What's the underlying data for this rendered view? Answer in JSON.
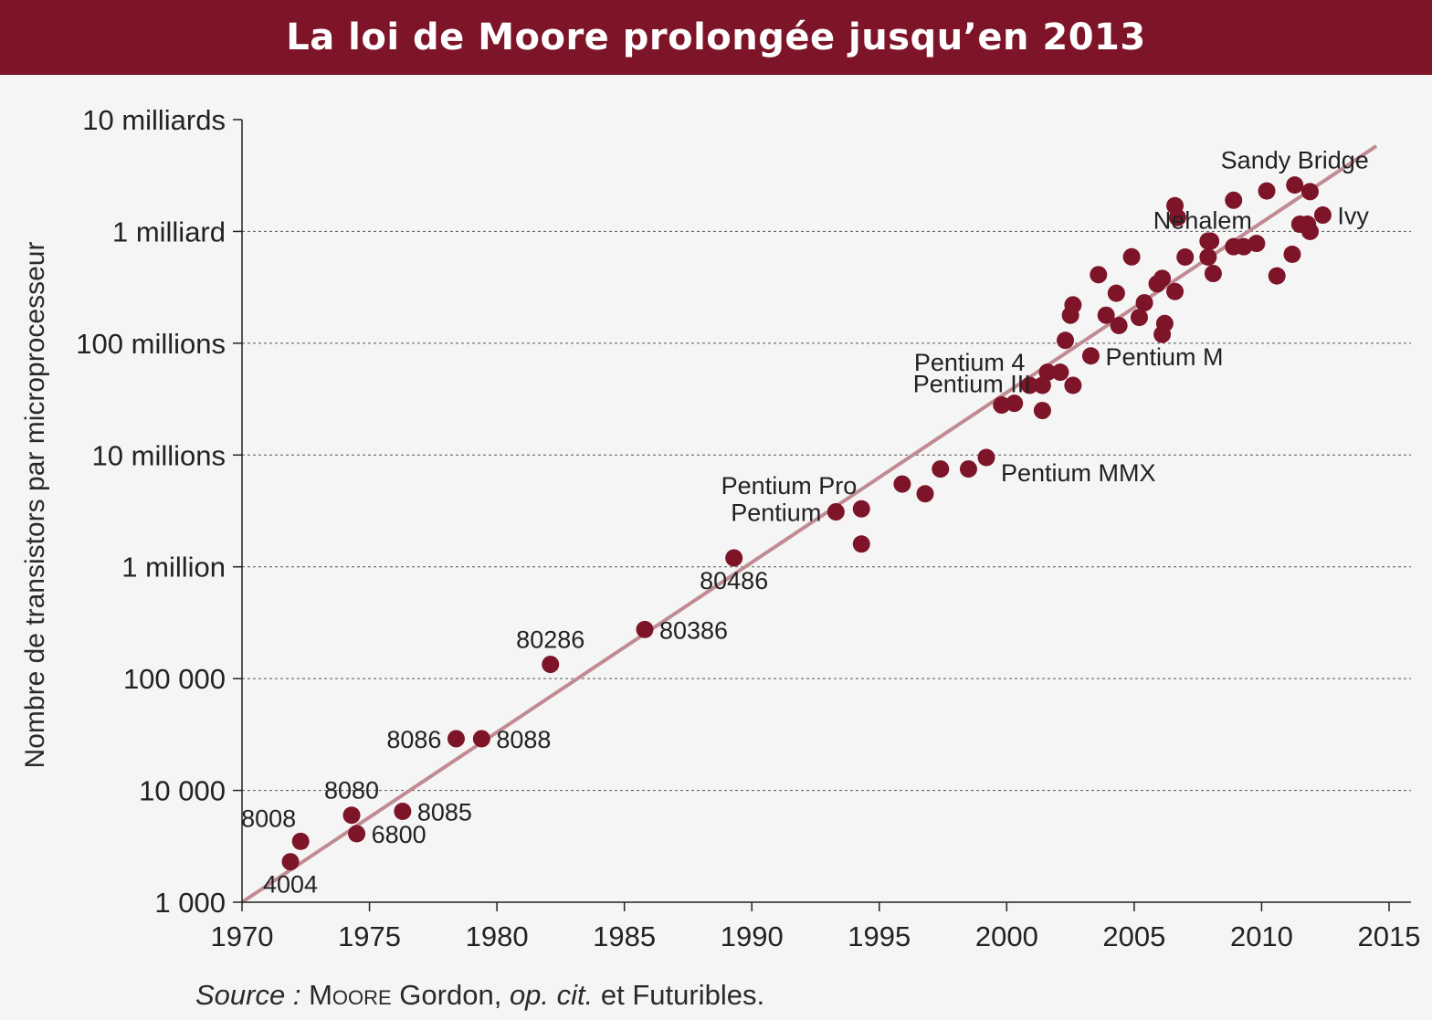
{
  "header": {
    "title": "La loi de Moore prolongée jusqu’en 2013"
  },
  "colors": {
    "banner": "#7d1428",
    "point": "#7d1428",
    "trend": "#c08b93",
    "axis": "#222222",
    "grid": "#555555",
    "background": "#f5f5f5"
  },
  "source": {
    "label": "Source :",
    "author_sc": "Moore",
    "author_rest": " Gordon, ",
    "cit": "op. cit.",
    "rest": " et Futuribles."
  },
  "chart_data": {
    "type": "scatter",
    "title": "",
    "xlabel": "",
    "ylabel": "Nombre de transistors par microprocesseur",
    "xlim": [
      1970,
      2015
    ],
    "ylim": [
      1000,
      10000000000
    ],
    "yscale": "log",
    "grid": "horizontal dashed",
    "x_ticks": [
      1970,
      1975,
      1980,
      1985,
      1990,
      1995,
      2000,
      2005,
      2010,
      2015
    ],
    "y_ticks": [
      {
        "value": 1000,
        "label": "1 000"
      },
      {
        "value": 10000,
        "label": "10 000"
      },
      {
        "value": 100000,
        "label": "100 000"
      },
      {
        "value": 1000000,
        "label": "1 million"
      },
      {
        "value": 10000000,
        "label": "10 millions"
      },
      {
        "value": 100000000,
        "label": "100 millions"
      },
      {
        "value": 1000000000,
        "label": "1 milliard"
      },
      {
        "value": 10000000000,
        "label": "10 milliards"
      }
    ],
    "trend_line": {
      "x": [
        1970,
        2014.5
      ],
      "y": [
        1000,
        5800000000
      ]
    },
    "points": [
      {
        "x": 1971.9,
        "y": 2300,
        "label": "4004",
        "anchor": "below"
      },
      {
        "x": 1972.3,
        "y": 3500,
        "label": "8008",
        "anchor": "above-left"
      },
      {
        "x": 1974.3,
        "y": 6000,
        "label": "8080",
        "anchor": "above"
      },
      {
        "x": 1974.5,
        "y": 4100,
        "label": "6800",
        "anchor": "right"
      },
      {
        "x": 1976.3,
        "y": 6500,
        "label": "8085",
        "anchor": "right"
      },
      {
        "x": 1978.4,
        "y": 29000,
        "label": "8086",
        "anchor": "left"
      },
      {
        "x": 1979.4,
        "y": 29000,
        "label": "8088",
        "anchor": "right"
      },
      {
        "x": 1982.1,
        "y": 134000,
        "label": "80286",
        "anchor": "above"
      },
      {
        "x": 1985.8,
        "y": 275000,
        "label": "80386",
        "anchor": "right"
      },
      {
        "x": 1989.3,
        "y": 1200000,
        "label": "80486",
        "anchor": "below"
      },
      {
        "x": 1993.3,
        "y": 3100000,
        "label": "Pentium",
        "anchor": "left"
      },
      {
        "x": 1994.3,
        "y": 3300000,
        "label": "Pentium Pro",
        "anchor": "above-left"
      },
      {
        "x": 1994.3,
        "y": 1600000,
        "label": "",
        "anchor": ""
      },
      {
        "x": 1995.9,
        "y": 5500000,
        "label": "",
        "anchor": ""
      },
      {
        "x": 1996.8,
        "y": 4500000,
        "label": "",
        "anchor": ""
      },
      {
        "x": 1997.4,
        "y": 7500000,
        "label": "",
        "anchor": ""
      },
      {
        "x": 1998.5,
        "y": 7500000,
        "label": "",
        "anchor": ""
      },
      {
        "x": 1999.2,
        "y": 9500000,
        "label": "Pentium MMX",
        "anchor": "below-right"
      },
      {
        "x": 1999.8,
        "y": 28000000,
        "label": "Pentium III",
        "anchor": "below-left"
      },
      {
        "x": 2000.3,
        "y": 29000000,
        "label": "",
        "anchor": ""
      },
      {
        "x": 2000.9,
        "y": 42000000,
        "label": "Pentium 4",
        "anchor": "above-left"
      },
      {
        "x": 2001.4,
        "y": 42000000,
        "label": "",
        "anchor": ""
      },
      {
        "x": 2001.4,
        "y": 25000000,
        "label": "",
        "anchor": ""
      },
      {
        "x": 2001.6,
        "y": 55000000,
        "label": "",
        "anchor": ""
      },
      {
        "x": 2002.1,
        "y": 55000000,
        "label": "",
        "anchor": ""
      },
      {
        "x": 2002.3,
        "y": 106000000,
        "label": "",
        "anchor": ""
      },
      {
        "x": 2002.5,
        "y": 178000000,
        "label": "",
        "anchor": ""
      },
      {
        "x": 2002.6,
        "y": 220000000,
        "label": "",
        "anchor": ""
      },
      {
        "x": 2002.6,
        "y": 42000000,
        "label": "",
        "anchor": ""
      },
      {
        "x": 2003.3,
        "y": 77000000,
        "label": "Pentium M",
        "anchor": "right"
      },
      {
        "x": 2003.6,
        "y": 410000000,
        "label": "",
        "anchor": ""
      },
      {
        "x": 2003.9,
        "y": 178000000,
        "label": "",
        "anchor": ""
      },
      {
        "x": 2004.3,
        "y": 280000000,
        "label": "",
        "anchor": ""
      },
      {
        "x": 2004.4,
        "y": 144000000,
        "label": "",
        "anchor": ""
      },
      {
        "x": 2004.9,
        "y": 592000000,
        "label": "",
        "anchor": ""
      },
      {
        "x": 2005.2,
        "y": 170000000,
        "label": "",
        "anchor": ""
      },
      {
        "x": 2005.4,
        "y": 230000000,
        "label": "",
        "anchor": ""
      },
      {
        "x": 2005.9,
        "y": 340000000,
        "label": "",
        "anchor": ""
      },
      {
        "x": 2006.1,
        "y": 380000000,
        "label": "",
        "anchor": ""
      },
      {
        "x": 2006.1,
        "y": 120000000,
        "label": "",
        "anchor": ""
      },
      {
        "x": 2006.2,
        "y": 150000000,
        "label": "",
        "anchor": ""
      },
      {
        "x": 2006.6,
        "y": 290000000,
        "label": "",
        "anchor": ""
      },
      {
        "x": 2006.6,
        "y": 1700000000,
        "label": "",
        "anchor": ""
      },
      {
        "x": 2006.7,
        "y": 1330000000,
        "label": "",
        "anchor": ""
      },
      {
        "x": 2007.0,
        "y": 590000000,
        "label": "",
        "anchor": ""
      },
      {
        "x": 2007.9,
        "y": 820000000,
        "label": "",
        "anchor": ""
      },
      {
        "x": 2007.9,
        "y": 590000000,
        "label": "",
        "anchor": ""
      },
      {
        "x": 2008.0,
        "y": 820000000,
        "label": "",
        "anchor": ""
      },
      {
        "x": 2008.1,
        "y": 420000000,
        "label": "",
        "anchor": ""
      },
      {
        "x": 2008.9,
        "y": 1900000000,
        "label": "",
        "anchor": ""
      },
      {
        "x": 2008.9,
        "y": 730000000,
        "label": "",
        "anchor": ""
      },
      {
        "x": 2009.3,
        "y": 730000000,
        "label": "",
        "anchor": ""
      },
      {
        "x": 2009.8,
        "y": 780000000,
        "label": "Nehalem",
        "anchor": "above-left"
      },
      {
        "x": 2010.2,
        "y": 2300000000,
        "label": "",
        "anchor": ""
      },
      {
        "x": 2010.6,
        "y": 400000000,
        "label": "",
        "anchor": ""
      },
      {
        "x": 2011.2,
        "y": 624000000,
        "label": "",
        "anchor": ""
      },
      {
        "x": 2011.3,
        "y": 2600000000,
        "label": "Sandy Bridge",
        "anchor": "above"
      },
      {
        "x": 2011.5,
        "y": 1160000000,
        "label": "",
        "anchor": ""
      },
      {
        "x": 2011.8,
        "y": 1160000000,
        "label": "",
        "anchor": ""
      },
      {
        "x": 2011.9,
        "y": 2270000000,
        "label": "",
        "anchor": ""
      },
      {
        "x": 2011.9,
        "y": 1000000000,
        "label": "",
        "anchor": ""
      },
      {
        "x": 2012.4,
        "y": 1400000000,
        "label": "Ivy",
        "anchor": "right"
      }
    ]
  }
}
